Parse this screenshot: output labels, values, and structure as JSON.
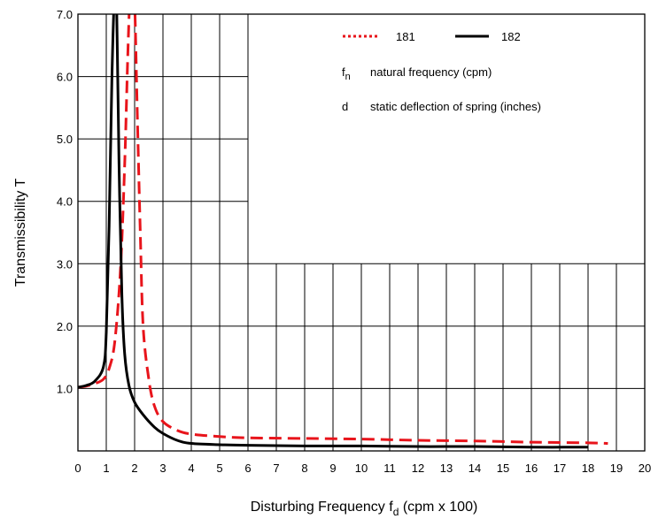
{
  "chart_data": {
    "type": "line",
    "title": "",
    "xlabel": "Disturbing Frequency",
    "xlabel_symbol": "f",
    "xlabel_subscript": "d",
    "xlabel_units": "(cpm x 100)",
    "ylabel": "Transmissibility  T",
    "xlim": [
      0,
      20
    ],
    "ylim": [
      0,
      7.0
    ],
    "x_ticks": [
      "0",
      "1",
      "2",
      "3",
      "4",
      "5",
      "6",
      "7",
      "8",
      "9",
      "10",
      "11",
      "12",
      "13",
      "14",
      "15",
      "16",
      "17",
      "18",
      "19",
      "20"
    ],
    "y_ticks": [
      {
        "value": 1.0,
        "label": "1.0"
      },
      {
        "value": 2.0,
        "label": "2.0"
      },
      {
        "value": 3.0,
        "label": "3.0"
      },
      {
        "value": 4.0,
        "label": "4.0"
      },
      {
        "value": 5.0,
        "label": "5.0"
      },
      {
        "value": 6.0,
        "label": "6.0"
      },
      {
        "value": 7.0,
        "label": "7.0"
      }
    ],
    "grid": true,
    "legend_position": "top-right",
    "series": [
      {
        "name": "181",
        "color": "#e8141b",
        "style": "dashed",
        "x": [
          0,
          0.3,
          0.6,
          0.9,
          1.1,
          1.3,
          1.5,
          1.65,
          1.75,
          1.83,
          1.9,
          2.0,
          2.1,
          2.2,
          2.3,
          2.5,
          2.7,
          3.0,
          3.5,
          4.0,
          5.0,
          6.0,
          8.0,
          10.0,
          12.0,
          14.0,
          16.0,
          18.0,
          18.7
        ],
        "y": [
          1.02,
          1.04,
          1.08,
          1.15,
          1.32,
          1.75,
          2.9,
          4.6,
          6.2,
          7.3,
          8.0,
          7.2,
          5.3,
          3.5,
          2.0,
          1.15,
          0.72,
          0.47,
          0.33,
          0.27,
          0.23,
          0.21,
          0.2,
          0.19,
          0.17,
          0.16,
          0.14,
          0.13,
          0.12
        ]
      },
      {
        "name": "182",
        "color": "#000000",
        "style": "solid",
        "x": [
          0,
          0.3,
          0.6,
          0.9,
          1.0,
          1.1,
          1.2,
          1.3,
          1.37,
          1.45,
          1.55,
          1.65,
          1.8,
          2.0,
          2.3,
          2.7,
          3.0,
          3.5,
          4.0,
          5.0,
          6.0,
          8.0,
          10.0,
          12.0,
          14.0,
          16.0,
          18.0
        ],
        "y": [
          1.02,
          1.05,
          1.12,
          1.35,
          1.9,
          3.6,
          6.0,
          7.4,
          7.0,
          4.6,
          2.5,
          1.55,
          1.05,
          0.78,
          0.58,
          0.38,
          0.28,
          0.17,
          0.12,
          0.1,
          0.09,
          0.08,
          0.08,
          0.07,
          0.07,
          0.06,
          0.06
        ]
      }
    ],
    "annotations": [
      {
        "symbol": "f",
        "subscript": "n",
        "text": "natural frequency (cpm)"
      },
      {
        "symbol": "d",
        "subscript": "",
        "text": "static deflection of spring (inches)"
      }
    ]
  }
}
